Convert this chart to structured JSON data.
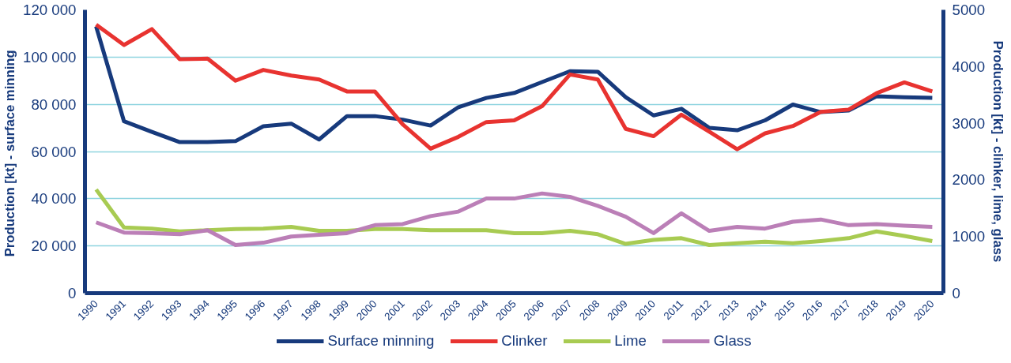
{
  "chart_data": {
    "type": "line",
    "categories": [
      "1990",
      "1991",
      "1992",
      "1993",
      "1994",
      "1995",
      "1996",
      "1997",
      "1998",
      "1999",
      "2000",
      "2001",
      "2002",
      "2003",
      "2004",
      "2005",
      "2006",
      "2007",
      "2008",
      "2009",
      "2010",
      "2011",
      "2012",
      "2013",
      "2014",
      "2015",
      "2016",
      "2017",
      "2018",
      "2019",
      "2020"
    ],
    "ylabel": "Production [kt]  - surface minning",
    "y2label": "Production [kt] - clinker, lime, glass",
    "ylim": [
      0,
      120000
    ],
    "yticks": [
      {
        "value": 0,
        "label": "0"
      },
      {
        "value": 20000,
        "label": "20 000"
      },
      {
        "value": 40000,
        "label": "40 000"
      },
      {
        "value": 60000,
        "label": "60 000"
      },
      {
        "value": 80000,
        "label": "80 000"
      },
      {
        "value": 100000,
        "label": "100 000"
      },
      {
        "value": 120000,
        "label": "120 000"
      }
    ],
    "y2lim": [
      0,
      5000
    ],
    "y2ticks": [
      0,
      1000,
      2000,
      3000,
      4000,
      5000
    ],
    "grid": "y",
    "legend": "bottom",
    "series": [
      {
        "name": "Surface minning",
        "color": "#173a7c",
        "values": [
          113000,
          72800,
          68300,
          64000,
          64000,
          64400,
          70700,
          71800,
          65100,
          75000,
          75000,
          73500,
          71000,
          78800,
          82700,
          84800,
          89400,
          94000,
          93800,
          83000,
          75300,
          78100,
          70000,
          69000,
          73200,
          79900,
          76700,
          77400,
          83400,
          83000,
          82700
        ]
      },
      {
        "name": "Clinker",
        "color": "#e83330",
        "axis": "y2",
        "values": [
          4740,
          4380,
          4660,
          4130,
          4140,
          3750,
          3940,
          3840,
          3770,
          3560,
          3560,
          2980,
          2550,
          2760,
          3020,
          3050,
          3300,
          3860,
          3770,
          2900,
          2770,
          3150,
          2850,
          2540,
          2820,
          2950,
          3200,
          3240,
          3530,
          3720,
          3560
        ]
      },
      {
        "name": "Lime",
        "color": "#a8cb52",
        "axis": "y2",
        "values": [
          1830,
          1160,
          1140,
          1090,
          1110,
          1130,
          1140,
          1170,
          1100,
          1100,
          1130,
          1130,
          1110,
          1110,
          1110,
          1060,
          1060,
          1100,
          1040,
          870,
          940,
          970,
          850,
          880,
          910,
          880,
          920,
          970,
          1090,
          1010,
          920
        ]
      },
      {
        "name": "Glass",
        "color": "#bb7fb7",
        "axis": "y2",
        "values": [
          1250,
          1070,
          1060,
          1040,
          1110,
          850,
          890,
          1000,
          1030,
          1060,
          1200,
          1220,
          1360,
          1440,
          1670,
          1670,
          1760,
          1700,
          1540,
          1350,
          1060,
          1410,
          1100,
          1170,
          1140,
          1260,
          1300,
          1200,
          1220,
          1190,
          1170
        ]
      }
    ]
  }
}
